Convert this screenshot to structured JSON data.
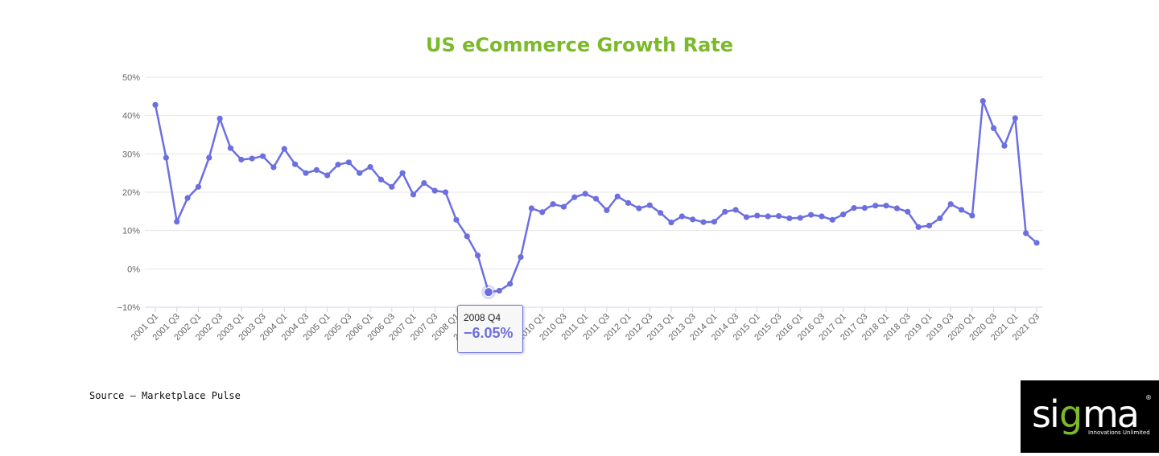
{
  "chart_data": {
    "type": "line",
    "title": "US eCommerce Growth Rate",
    "xlabel": "",
    "ylabel": "",
    "ylim": [
      -10,
      50
    ],
    "y_ticks": [
      "50%",
      "40%",
      "30%",
      "20%",
      "10%",
      "0%",
      "−10%"
    ],
    "y_tick_values": [
      50,
      40,
      30,
      20,
      10,
      0,
      -10
    ],
    "grid": true,
    "legend": "none",
    "colors": {
      "line": "#6c6fe0",
      "title": "#7cba2a",
      "grid": "#e6e6e6"
    },
    "categories": [
      "2001 Q1",
      "2001 Q2",
      "2001 Q3",
      "2001 Q4",
      "2002 Q1",
      "2002 Q2",
      "2002 Q3",
      "2002 Q4",
      "2003 Q1",
      "2003 Q2",
      "2003 Q3",
      "2003 Q4",
      "2004 Q1",
      "2004 Q2",
      "2004 Q3",
      "2004 Q4",
      "2005 Q1",
      "2005 Q2",
      "2005 Q3",
      "2005 Q4",
      "2006 Q1",
      "2006 Q2",
      "2006 Q3",
      "2006 Q4",
      "2007 Q1",
      "2007 Q2",
      "2007 Q3",
      "2007 Q4",
      "2008 Q1",
      "2008 Q2",
      "2008 Q3",
      "2008 Q4",
      "2009 Q1",
      "2009 Q2",
      "2009 Q3",
      "2009 Q4",
      "2010 Q1",
      "2010 Q2",
      "2010 Q3",
      "2010 Q4",
      "2011 Q1",
      "2011 Q2",
      "2011 Q3",
      "2011 Q4",
      "2012 Q1",
      "2012 Q2",
      "2012 Q3",
      "2012 Q4",
      "2013 Q1",
      "2013 Q2",
      "2013 Q3",
      "2013 Q4",
      "2014 Q1",
      "2014 Q2",
      "2014 Q3",
      "2014 Q4",
      "2015 Q1",
      "2015 Q2",
      "2015 Q3",
      "2015 Q4",
      "2016 Q1",
      "2016 Q2",
      "2016 Q3",
      "2016 Q4",
      "2017 Q1",
      "2017 Q2",
      "2017 Q3",
      "2017 Q4",
      "2018 Q1",
      "2018 Q2",
      "2018 Q3",
      "2018 Q4",
      "2019 Q1",
      "2019 Q2",
      "2019 Q3",
      "2019 Q4",
      "2020 Q1",
      "2020 Q2",
      "2020 Q3",
      "2020 Q4",
      "2021 Q1",
      "2021 Q2",
      "2021 Q3"
    ],
    "tick_label_every": 2,
    "series": [
      {
        "values": [
          42.8,
          29.0,
          12.3,
          18.5,
          21.4,
          29.0,
          39.2,
          31.5,
          28.5,
          28.8,
          29.4,
          26.5,
          31.3,
          27.3,
          25.0,
          25.8,
          24.4,
          27.2,
          27.8,
          25.0,
          26.6,
          23.3,
          21.4,
          25.0,
          19.4,
          22.4,
          20.4,
          20.0,
          12.8,
          8.5,
          3.5,
          -6.05,
          -5.7,
          -3.9,
          3.1,
          15.8,
          14.8,
          16.9,
          16.2,
          18.7,
          19.6,
          18.3,
          15.3,
          18.9,
          17.2,
          15.8,
          16.6,
          14.6,
          12.1,
          13.7,
          12.9,
          12.2,
          12.3,
          14.9,
          15.4,
          13.5,
          13.9,
          13.7,
          13.8,
          13.2,
          13.3,
          14.1,
          13.7,
          12.8,
          14.2,
          15.9,
          15.9,
          16.5,
          16.5,
          15.8,
          14.9,
          10.9,
          11.3,
          13.2,
          16.9,
          15.4,
          13.9,
          43.8,
          36.7,
          32.1,
          39.3,
          9.3,
          6.8
        ]
      }
    ],
    "tooltip": {
      "label": "2008 Q4",
      "value": "−6.05%",
      "index": 31
    }
  },
  "source": "Source – Marketplace Pulse",
  "logo": {
    "text": "sigma",
    "tagline": "Innovations Unlimited",
    "registered": "®"
  }
}
